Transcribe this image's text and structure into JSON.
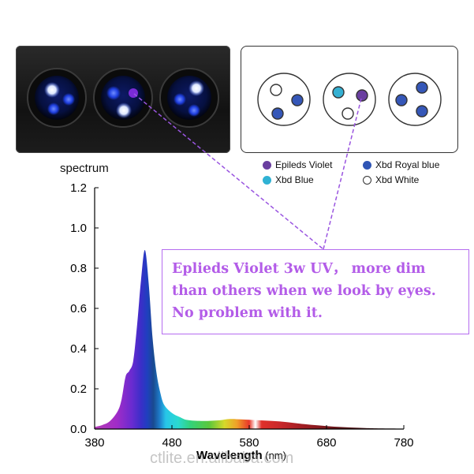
{
  "legend": {
    "items": [
      {
        "label": "Epileds Violet",
        "color": "#6a3fa0"
      },
      {
        "label": "Xbd Royal blue",
        "color": "#2f55b5"
      },
      {
        "label": "Xbd Blue",
        "color": "#2fb2d4"
      },
      {
        "label": "Xbd White",
        "color": "#ffffff"
      }
    ]
  },
  "spectrum_label": "spectrum",
  "callout": {
    "line1": "Eplieds Violet 3w UV， more dim",
    "line2": "than others when we look by eyes.",
    "line3": "No problem with it."
  },
  "watermark": "ctlite.en.alibaba.com",
  "chart_data": {
    "type": "area",
    "title": "",
    "xlabel": "Wavelength (nm)",
    "ylabel": "",
    "xlim": [
      380,
      780
    ],
    "ylim": [
      0,
      1.2
    ],
    "x_ticks": [
      380,
      480,
      580,
      680,
      780
    ],
    "y_ticks": [
      "0.0",
      "0.2",
      "0.4",
      "0.6",
      "0.8",
      "1.0",
      "1.2"
    ],
    "grid": false,
    "series": [
      {
        "x": [
          380,
          390,
          400,
          410,
          415,
          420,
          425,
          430,
          435,
          440,
          445,
          450,
          455,
          460,
          465,
          470,
          480,
          490,
          500,
          520,
          540,
          555,
          570,
          590,
          610,
          630,
          650,
          670,
          690,
          710,
          730,
          750,
          780
        ],
        "y": [
          0.01,
          0.02,
          0.04,
          0.09,
          0.15,
          0.26,
          0.29,
          0.34,
          0.52,
          0.74,
          0.89,
          0.72,
          0.45,
          0.28,
          0.18,
          0.12,
          0.08,
          0.06,
          0.045,
          0.04,
          0.043,
          0.05,
          0.048,
          0.044,
          0.04,
          0.034,
          0.025,
          0.018,
          0.012,
          0.008,
          0.005,
          0.003,
          0.002
        ]
      }
    ]
  }
}
